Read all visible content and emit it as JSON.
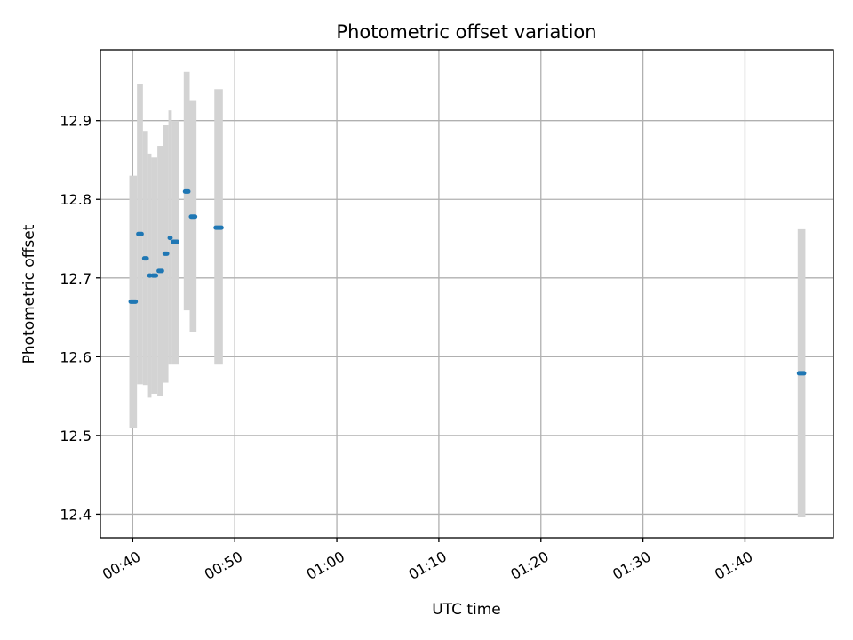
{
  "chart_data": {
    "type": "scatter",
    "title": "Photometric offset variation",
    "xlabel": "UTC time",
    "ylabel": "Photometric offset",
    "xlim": [
      "00:36:50",
      "01:48:40"
    ],
    "ylim": [
      12.37,
      12.99
    ],
    "x_ticks": [
      "00:40",
      "00:50",
      "01:00",
      "01:10",
      "01:20",
      "01:30",
      "01:40"
    ],
    "y_ticks": [
      12.4,
      12.5,
      12.6,
      12.7,
      12.8,
      12.9
    ],
    "grid": true,
    "colors": {
      "points": "#1f77b4",
      "error_bars": "#d3d3d3"
    },
    "points": [
      {
        "start": "00:39:40",
        "end": "00:40:25",
        "y": 12.67,
        "ylow": 12.51,
        "yhigh": 12.83
      },
      {
        "start": "00:40:25",
        "end": "00:41:00",
        "y": 12.756,
        "ylow": 12.565,
        "yhigh": 12.946
      },
      {
        "start": "00:41:00",
        "end": "00:41:30",
        "y": 12.725,
        "ylow": 12.564,
        "yhigh": 12.887
      },
      {
        "start": "00:41:30",
        "end": "00:41:50",
        "y": 12.703,
        "ylow": 12.548,
        "yhigh": 12.858
      },
      {
        "start": "00:41:50",
        "end": "00:42:25",
        "y": 12.703,
        "ylow": 12.553,
        "yhigh": 12.853
      },
      {
        "start": "00:42:25",
        "end": "00:43:00",
        "y": 12.709,
        "ylow": 12.55,
        "yhigh": 12.868
      },
      {
        "start": "00:43:00",
        "end": "00:43:30",
        "y": 12.731,
        "ylow": 12.567,
        "yhigh": 12.894
      },
      {
        "start": "00:43:30",
        "end": "00:43:50",
        "y": 12.751,
        "ylow": 12.59,
        "yhigh": 12.913
      },
      {
        "start": "00:43:50",
        "end": "00:44:30",
        "y": 12.746,
        "ylow": 12.59,
        "yhigh": 12.9
      },
      {
        "start": "00:45:00",
        "end": "00:45:35",
        "y": 12.81,
        "ylow": 12.659,
        "yhigh": 12.962
      },
      {
        "start": "00:45:35",
        "end": "00:46:15",
        "y": 12.778,
        "ylow": 12.632,
        "yhigh": 12.925
      },
      {
        "start": "00:48:00",
        "end": "00:48:50",
        "y": 12.764,
        "ylow": 12.59,
        "yhigh": 12.94
      },
      {
        "start": "01:45:10",
        "end": "01:45:55",
        "y": 12.579,
        "ylow": 12.396,
        "yhigh": 12.762
      }
    ]
  }
}
